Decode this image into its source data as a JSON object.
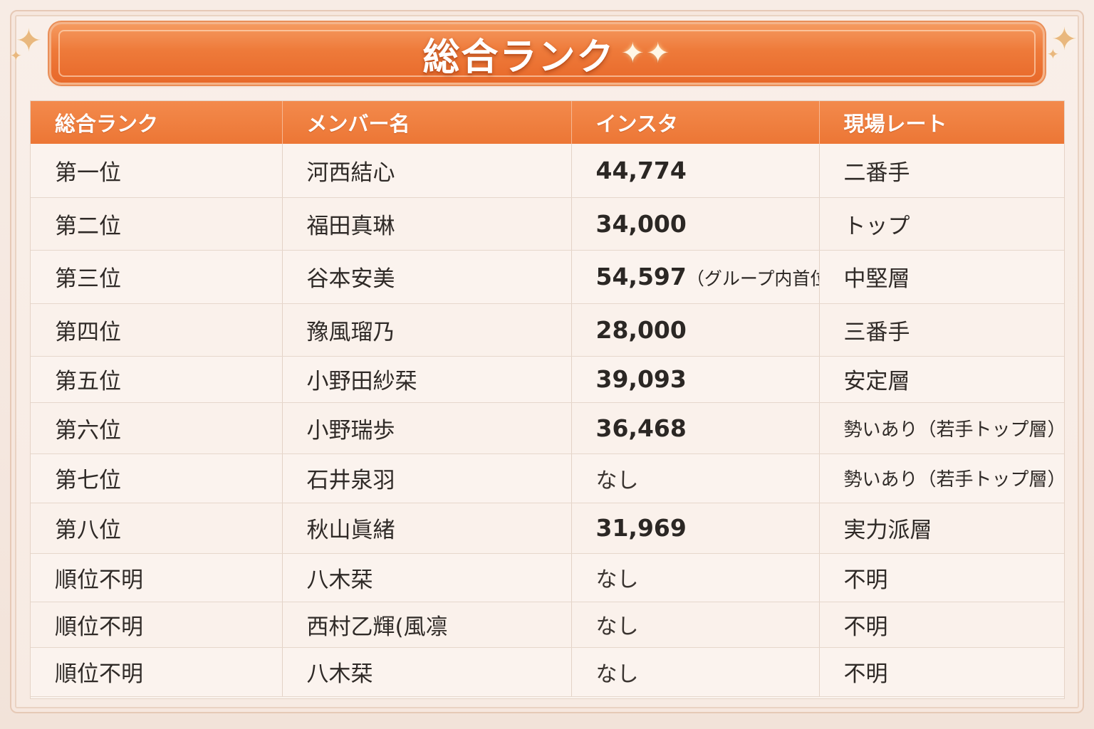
{
  "banner": {
    "title": "総合ランク",
    "sparkle": "✦✦"
  },
  "table": {
    "headers": [
      "総合ランク",
      "メンバー名",
      "インスタ",
      "現場レート"
    ],
    "rows": [
      {
        "rank": "第一位",
        "name": "河西結心",
        "insta": "44,774",
        "insta_note": "",
        "rate": "二番手"
      },
      {
        "rank": "第二位",
        "name": "福田真琳",
        "insta": "34,000",
        "insta_note": "",
        "rate": "トップ"
      },
      {
        "rank": "第三位",
        "name": "谷本安美",
        "insta": "54,597",
        "insta_note": "（グループ内首位）",
        "rate": "中堅層"
      },
      {
        "rank": "第四位",
        "name": "豫風瑠乃",
        "insta": "28,000",
        "insta_note": "",
        "rate": "三番手"
      },
      {
        "rank": "第五位",
        "name": "小野田紗栞",
        "insta": "39,093",
        "insta_note": "",
        "rate": "安定層"
      },
      {
        "rank": "第六位",
        "name": "小野瑞歩",
        "insta": "36,468",
        "insta_note": "",
        "rate": "勢いあり（若手トップ層）"
      },
      {
        "rank": "第七位",
        "name": "石井泉羽",
        "insta": "なし",
        "insta_note": "",
        "rate": "勢いあり（若手トップ層）"
      },
      {
        "rank": "第八位",
        "name": "秋山眞緒",
        "insta": "31,969",
        "insta_note": "",
        "rate": "実力派層"
      },
      {
        "rank": "順位不明",
        "name": "八木栞",
        "insta": "なし",
        "insta_note": "",
        "rate": "不明"
      },
      {
        "rank": "順位不明",
        "name": "西村乙輝(風凛",
        "insta": "なし",
        "insta_note": "",
        "rate": "不明"
      },
      {
        "rank": "順位不明",
        "name": "八木栞",
        "insta": "なし",
        "insta_note": "",
        "rate": "不明"
      }
    ]
  },
  "colors": {
    "accent": "#ec7635",
    "header_text": "#ffffff",
    "body_text": "#2f2a27",
    "background": "#f7ece5"
  }
}
